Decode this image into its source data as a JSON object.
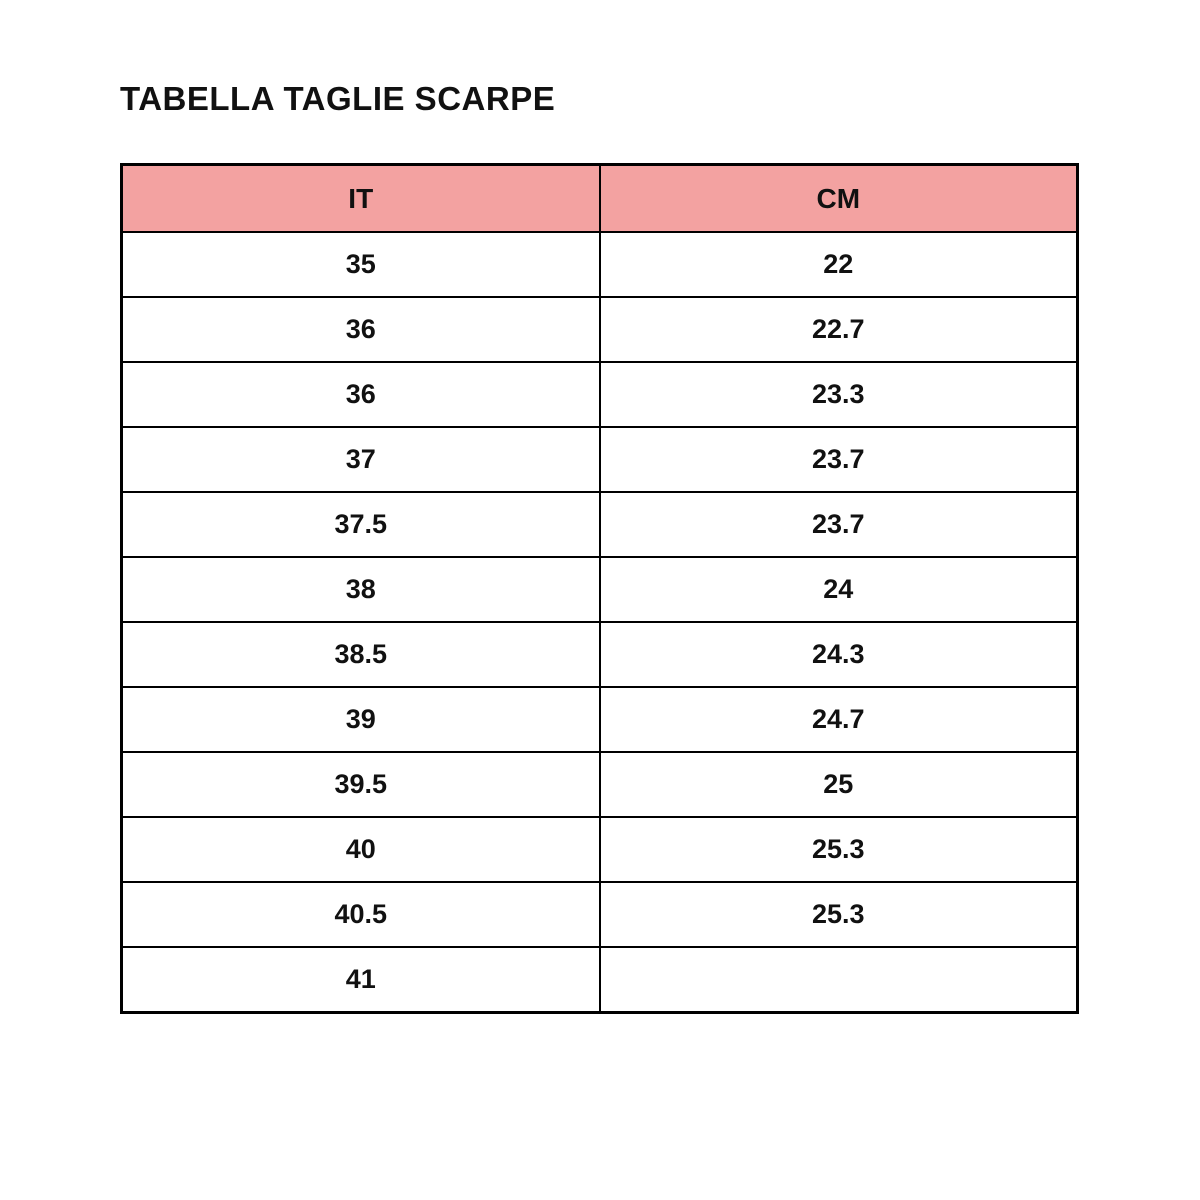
{
  "title": "TABELLA TAGLIE SCARPE",
  "colors": {
    "header_background": "#F3A2A1",
    "border": "#000000",
    "text": "#111111",
    "page_background": "#ffffff"
  },
  "chart_data": {
    "type": "table",
    "title": "TABELLA TAGLIE SCARPE",
    "columns": [
      "IT",
      "CM"
    ],
    "rows": [
      [
        "35",
        "22"
      ],
      [
        "36",
        "22.7"
      ],
      [
        "36",
        "23.3"
      ],
      [
        "37",
        "23.7"
      ],
      [
        "37.5",
        "23.7"
      ],
      [
        "38",
        "24"
      ],
      [
        "38.5",
        "24.3"
      ],
      [
        "39",
        "24.7"
      ],
      [
        "39.5",
        "25"
      ],
      [
        "40",
        "25.3"
      ],
      [
        "40.5",
        "25.3"
      ],
      [
        "41",
        ""
      ]
    ],
    "layout_hints": {
      "header_fill": "#F3A2A1",
      "grid": "all-borders",
      "text_align": "center",
      "font_weight": "bold"
    }
  }
}
